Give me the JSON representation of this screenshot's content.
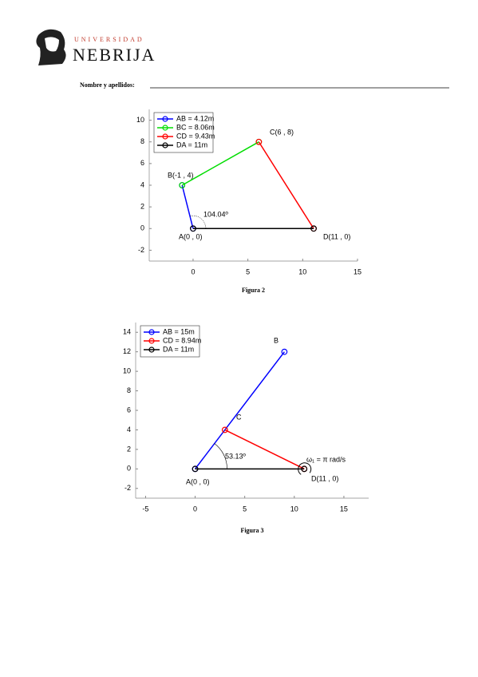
{
  "header": {
    "logo_top": "UNIVERSIDAD",
    "logo_name": "NEBRIJA",
    "name_label": "Nombre y apellidos:"
  },
  "chart_data": [
    {
      "type": "line",
      "caption": "Figura 2",
      "xlim": [
        -4,
        15
      ],
      "xticks": [
        0,
        5,
        10,
        15
      ],
      "ylim": [
        -3,
        11
      ],
      "yticks": [
        -2,
        0,
        2,
        4,
        6,
        8,
        10
      ],
      "legend": "upper left",
      "series": [
        {
          "name": "AB = 4.12m",
          "color": "#0000ff",
          "x": [
            0,
            -1
          ],
          "values": [
            0,
            4
          ]
        },
        {
          "name": "BC = 8.06m",
          "color": "#00dd00",
          "x": [
            -1,
            6
          ],
          "values": [
            4,
            8
          ]
        },
        {
          "name": "CD = 9.43m",
          "color": "#ff0000",
          "x": [
            6,
            11
          ],
          "values": [
            8,
            0
          ]
        },
        {
          "name": "DA = 11m",
          "color": "#000000",
          "x": [
            11,
            0
          ],
          "values": [
            0,
            0
          ]
        }
      ],
      "annotations": [
        "B(-1 , 4)",
        "C(6 , 8)",
        "A(0 , 0)",
        "D(11 , 0)",
        "104.04º"
      ]
    },
    {
      "type": "line",
      "caption": "Figura 3",
      "xlim": [
        -6,
        17.5
      ],
      "xticks": [
        -5,
        0,
        5,
        10,
        15
      ],
      "ylim": [
        -3,
        15
      ],
      "yticks": [
        -2,
        0,
        2,
        4,
        6,
        8,
        10,
        12,
        14
      ],
      "legend": "upper left",
      "series": [
        {
          "name": "AB = 15m",
          "color": "#0000ff",
          "x": [
            0,
            9
          ],
          "values": [
            0,
            12
          ]
        },
        {
          "name": "CD = 8.94m",
          "color": "#ff0000",
          "x": [
            3,
            11
          ],
          "values": [
            4,
            0
          ]
        },
        {
          "name": "DA = 11m",
          "color": "#000000",
          "x": [
            11,
            0
          ],
          "values": [
            0,
            0
          ]
        }
      ],
      "annotations": [
        "B",
        "C",
        "A(0 , 0)",
        "D(11 , 0)",
        "53.13º",
        "ω₁ = π rad/s"
      ]
    }
  ]
}
